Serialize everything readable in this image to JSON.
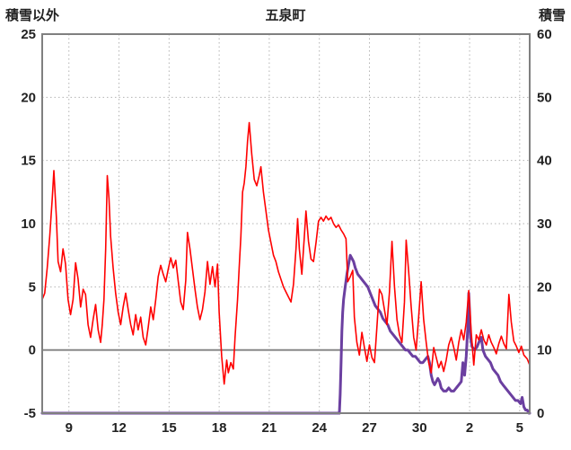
{
  "chart_data": {
    "type": "line",
    "title": "五泉町",
    "left_axis": {
      "label": "積雪以外",
      "min": -5,
      "max": 25,
      "ticks": [
        25,
        20,
        15,
        10,
        5,
        0,
        -5
      ],
      "grid": [
        20,
        15,
        10,
        5
      ],
      "zero_line": 0
    },
    "right_axis": {
      "label": "積雪",
      "min": 0,
      "max": 60,
      "ticks": [
        60,
        50,
        40,
        30,
        20,
        10,
        0
      ]
    },
    "x_axis": {
      "domain": [
        -0.6,
        28.6
      ],
      "ticks": [
        {
          "pos": 1,
          "label": "9"
        },
        {
          "pos": 4,
          "label": "12"
        },
        {
          "pos": 7,
          "label": "15"
        },
        {
          "pos": 10,
          "label": "18"
        },
        {
          "pos": 13,
          "label": "21"
        },
        {
          "pos": 16,
          "label": "24"
        },
        {
          "pos": 19,
          "label": "27"
        },
        {
          "pos": 22,
          "label": "30"
        },
        {
          "pos": 25,
          "label": "2"
        },
        {
          "pos": 28,
          "label": "5"
        }
      ]
    },
    "colors": {
      "red_series": "#FF0000",
      "purple_series": "#6B3FA0",
      "grid": "#b3b3b3",
      "frame": "#808080",
      "zero": "#808080",
      "text": "#222222"
    },
    "series": [
      {
        "name": "積雪以外",
        "axis": "left",
        "color_key": "red_series",
        "width": 1.6,
        "points": [
          [
            -0.6,
            4.0
          ],
          [
            -0.45,
            4.5
          ],
          [
            -0.3,
            6.5
          ],
          [
            -0.15,
            9.0
          ],
          [
            0.0,
            12.0
          ],
          [
            0.1,
            14.2
          ],
          [
            0.25,
            10.5
          ],
          [
            0.35,
            7.0
          ],
          [
            0.5,
            6.2
          ],
          [
            0.65,
            8.0
          ],
          [
            0.8,
            6.8
          ],
          [
            0.95,
            4.0
          ],
          [
            1.1,
            2.8
          ],
          [
            1.25,
            4.0
          ],
          [
            1.4,
            6.9
          ],
          [
            1.55,
            5.6
          ],
          [
            1.7,
            3.4
          ],
          [
            1.85,
            4.8
          ],
          [
            2.0,
            4.4
          ],
          [
            2.15,
            2.0
          ],
          [
            2.3,
            1.0
          ],
          [
            2.45,
            2.4
          ],
          [
            2.6,
            3.6
          ],
          [
            2.75,
            1.6
          ],
          [
            2.9,
            0.6
          ],
          [
            3.0,
            2.0
          ],
          [
            3.1,
            4.0
          ],
          [
            3.2,
            8.0
          ],
          [
            3.3,
            13.8
          ],
          [
            3.4,
            12.0
          ],
          [
            3.5,
            9.0
          ],
          [
            3.65,
            6.5
          ],
          [
            3.8,
            4.5
          ],
          [
            3.95,
            3.0
          ],
          [
            4.1,
            2.0
          ],
          [
            4.25,
            3.4
          ],
          [
            4.4,
            4.5
          ],
          [
            4.55,
            3.2
          ],
          [
            4.7,
            2.0
          ],
          [
            4.85,
            1.2
          ],
          [
            5.0,
            2.8
          ],
          [
            5.15,
            1.6
          ],
          [
            5.3,
            2.6
          ],
          [
            5.45,
            1.0
          ],
          [
            5.6,
            0.4
          ],
          [
            5.75,
            1.8
          ],
          [
            5.9,
            3.4
          ],
          [
            6.05,
            2.4
          ],
          [
            6.2,
            4.0
          ],
          [
            6.35,
            5.8
          ],
          [
            6.5,
            6.7
          ],
          [
            6.65,
            6.0
          ],
          [
            6.8,
            5.4
          ],
          [
            6.95,
            6.4
          ],
          [
            7.1,
            7.3
          ],
          [
            7.25,
            6.5
          ],
          [
            7.4,
            7.1
          ],
          [
            7.55,
            5.4
          ],
          [
            7.7,
            3.8
          ],
          [
            7.85,
            3.2
          ],
          [
            8.0,
            5.5
          ],
          [
            8.1,
            9.3
          ],
          [
            8.25,
            8.0
          ],
          [
            8.4,
            6.4
          ],
          [
            8.55,
            4.8
          ],
          [
            8.7,
            3.4
          ],
          [
            8.85,
            2.4
          ],
          [
            9.0,
            3.2
          ],
          [
            9.15,
            4.6
          ],
          [
            9.3,
            7.0
          ],
          [
            9.45,
            5.2
          ],
          [
            9.6,
            6.6
          ],
          [
            9.75,
            5.0
          ],
          [
            9.9,
            6.8
          ],
          [
            10.0,
            3.0
          ],
          [
            10.15,
            -0.5
          ],
          [
            10.3,
            -2.7
          ],
          [
            10.45,
            -0.8
          ],
          [
            10.55,
            -1.8
          ],
          [
            10.7,
            -1.0
          ],
          [
            10.85,
            -1.5
          ],
          [
            10.95,
            1.0
          ],
          [
            11.1,
            4.0
          ],
          [
            11.2,
            6.5
          ],
          [
            11.3,
            9.0
          ],
          [
            11.4,
            12.5
          ],
          [
            11.5,
            13.2
          ],
          [
            11.6,
            14.5
          ],
          [
            11.7,
            16.5
          ],
          [
            11.8,
            18.0
          ],
          [
            11.95,
            15.5
          ],
          [
            12.1,
            13.5
          ],
          [
            12.25,
            13.0
          ],
          [
            12.4,
            13.8
          ],
          [
            12.5,
            14.5
          ],
          [
            12.65,
            12.5
          ],
          [
            12.8,
            11.0
          ],
          [
            12.95,
            9.5
          ],
          [
            13.1,
            8.5
          ],
          [
            13.25,
            7.5
          ],
          [
            13.4,
            7.0
          ],
          [
            13.55,
            6.2
          ],
          [
            13.7,
            5.6
          ],
          [
            13.85,
            5.0
          ],
          [
            14.0,
            4.6
          ],
          [
            14.15,
            4.2
          ],
          [
            14.3,
            3.8
          ],
          [
            14.45,
            5.2
          ],
          [
            14.6,
            8.0
          ],
          [
            14.7,
            10.4
          ],
          [
            14.8,
            8.0
          ],
          [
            14.95,
            6.0
          ],
          [
            15.1,
            9.0
          ],
          [
            15.2,
            11.0
          ],
          [
            15.35,
            8.6
          ],
          [
            15.5,
            7.2
          ],
          [
            15.65,
            7.0
          ],
          [
            15.8,
            8.5
          ],
          [
            15.95,
            10.2
          ],
          [
            16.1,
            10.5
          ],
          [
            16.25,
            10.2
          ],
          [
            16.4,
            10.6
          ],
          [
            16.55,
            10.3
          ],
          [
            16.7,
            10.5
          ],
          [
            16.85,
            10.0
          ],
          [
            17.0,
            9.7
          ],
          [
            17.15,
            9.9
          ],
          [
            17.3,
            9.5
          ],
          [
            17.45,
            9.2
          ],
          [
            17.6,
            8.8
          ],
          [
            17.7,
            5.4
          ],
          [
            17.85,
            5.8
          ],
          [
            18.0,
            6.3
          ],
          [
            18.1,
            2.6
          ],
          [
            18.25,
            0.6
          ],
          [
            18.4,
            -0.4
          ],
          [
            18.55,
            1.4
          ],
          [
            18.7,
            0.2
          ],
          [
            18.85,
            -0.9
          ],
          [
            19.0,
            0.4
          ],
          [
            19.15,
            -0.6
          ],
          [
            19.3,
            -1.0
          ],
          [
            19.45,
            1.8
          ],
          [
            19.6,
            4.8
          ],
          [
            19.75,
            4.4
          ],
          [
            19.9,
            3.2
          ],
          [
            20.05,
            2.0
          ],
          [
            20.2,
            4.6
          ],
          [
            20.35,
            8.6
          ],
          [
            20.5,
            5.0
          ],
          [
            20.65,
            2.4
          ],
          [
            20.8,
            1.2
          ],
          [
            20.95,
            0.6
          ],
          [
            21.1,
            3.8
          ],
          [
            21.2,
            8.7
          ],
          [
            21.35,
            6.2
          ],
          [
            21.5,
            3.4
          ],
          [
            21.65,
            1.0
          ],
          [
            21.8,
            0.0
          ],
          [
            21.95,
            2.6
          ],
          [
            22.1,
            5.4
          ],
          [
            22.25,
            2.4
          ],
          [
            22.4,
            0.6
          ],
          [
            22.55,
            -1.0
          ],
          [
            22.7,
            -1.8
          ],
          [
            22.85,
            0.2
          ],
          [
            23.0,
            -0.6
          ],
          [
            23.15,
            -1.4
          ],
          [
            23.3,
            -0.9
          ],
          [
            23.45,
            -1.7
          ],
          [
            23.6,
            -0.8
          ],
          [
            23.75,
            0.4
          ],
          [
            23.9,
            1.0
          ],
          [
            24.05,
            0.2
          ],
          [
            24.2,
            -0.8
          ],
          [
            24.35,
            0.6
          ],
          [
            24.5,
            1.6
          ],
          [
            24.65,
            0.8
          ],
          [
            24.8,
            2.2
          ],
          [
            24.95,
            4.7
          ],
          [
            25.1,
            1.4
          ],
          [
            25.25,
            -1.2
          ],
          [
            25.4,
            1.2
          ],
          [
            25.55,
            0.8
          ],
          [
            25.7,
            1.6
          ],
          [
            25.85,
            0.8
          ],
          [
            26.0,
            0.4
          ],
          [
            26.15,
            1.2
          ],
          [
            26.3,
            0.6
          ],
          [
            26.45,
            0.2
          ],
          [
            26.6,
            -0.3
          ],
          [
            26.75,
            0.5
          ],
          [
            26.9,
            1.1
          ],
          [
            27.05,
            0.5
          ],
          [
            27.2,
            0.1
          ],
          [
            27.35,
            4.4
          ],
          [
            27.5,
            2.2
          ],
          [
            27.65,
            0.7
          ],
          [
            27.8,
            0.3
          ],
          [
            27.95,
            -0.2
          ],
          [
            28.1,
            0.3
          ],
          [
            28.25,
            -0.4
          ],
          [
            28.45,
            -0.7
          ],
          [
            28.6,
            -1.2
          ]
        ]
      },
      {
        "name": "積雪",
        "axis": "right",
        "color_key": "purple_series",
        "width": 3,
        "points": [
          [
            -0.6,
            0
          ],
          [
            17.2,
            0
          ],
          [
            17.25,
            3
          ],
          [
            17.3,
            8
          ],
          [
            17.35,
            13
          ],
          [
            17.4,
            16
          ],
          [
            17.45,
            18
          ],
          [
            17.55,
            20
          ],
          [
            17.65,
            22
          ],
          [
            17.75,
            23.5
          ],
          [
            17.85,
            25
          ],
          [
            17.95,
            24.5
          ],
          [
            18.05,
            24
          ],
          [
            18.15,
            23
          ],
          [
            18.3,
            22
          ],
          [
            18.45,
            21.5
          ],
          [
            18.6,
            21
          ],
          [
            18.75,
            20.5
          ],
          [
            18.9,
            20
          ],
          [
            19.05,
            19
          ],
          [
            19.2,
            18
          ],
          [
            19.35,
            17
          ],
          [
            19.5,
            16.5
          ],
          [
            19.65,
            16
          ],
          [
            19.8,
            15
          ],
          [
            19.95,
            14.5
          ],
          [
            20.1,
            14
          ],
          [
            20.25,
            13
          ],
          [
            20.4,
            12.5
          ],
          [
            20.55,
            12
          ],
          [
            20.7,
            11.5
          ],
          [
            20.85,
            11
          ],
          [
            21.0,
            10.5
          ],
          [
            21.15,
            10
          ],
          [
            21.3,
            10
          ],
          [
            21.45,
            9.5
          ],
          [
            21.6,
            9
          ],
          [
            21.75,
            9
          ],
          [
            21.9,
            8.5
          ],
          [
            22.05,
            8
          ],
          [
            22.2,
            8
          ],
          [
            22.35,
            8.5
          ],
          [
            22.5,
            9
          ],
          [
            22.6,
            8
          ],
          [
            22.7,
            6
          ],
          [
            22.8,
            5
          ],
          [
            22.9,
            4.5
          ],
          [
            23.0,
            5
          ],
          [
            23.1,
            5.5
          ],
          [
            23.2,
            5
          ],
          [
            23.3,
            4
          ],
          [
            23.45,
            3.5
          ],
          [
            23.6,
            3.5
          ],
          [
            23.75,
            4
          ],
          [
            23.9,
            3.5
          ],
          [
            24.05,
            3.5
          ],
          [
            24.2,
            4
          ],
          [
            24.35,
            4.5
          ],
          [
            24.5,
            5
          ],
          [
            24.6,
            8
          ],
          [
            24.7,
            6
          ],
          [
            24.8,
            9
          ],
          [
            24.9,
            14
          ],
          [
            24.95,
            19
          ],
          [
            25.0,
            16
          ],
          [
            25.05,
            12
          ],
          [
            25.15,
            10.5
          ],
          [
            25.3,
            10
          ],
          [
            25.45,
            10.5
          ],
          [
            25.6,
            11.5
          ],
          [
            25.7,
            12
          ],
          [
            25.8,
            10
          ],
          [
            25.95,
            9
          ],
          [
            26.1,
            8.5
          ],
          [
            26.25,
            8
          ],
          [
            26.4,
            7
          ],
          [
            26.55,
            6.5
          ],
          [
            26.7,
            6
          ],
          [
            26.85,
            5
          ],
          [
            27.0,
            4.5
          ],
          [
            27.15,
            4
          ],
          [
            27.3,
            3.5
          ],
          [
            27.45,
            3
          ],
          [
            27.6,
            2.5
          ],
          [
            27.75,
            2
          ],
          [
            27.9,
            2
          ],
          [
            28.05,
            1.5
          ],
          [
            28.15,
            2.5
          ],
          [
            28.25,
            1
          ],
          [
            28.35,
            0.5
          ],
          [
            28.45,
            0.5
          ],
          [
            28.55,
            0
          ],
          [
            28.6,
            0
          ]
        ]
      }
    ]
  }
}
